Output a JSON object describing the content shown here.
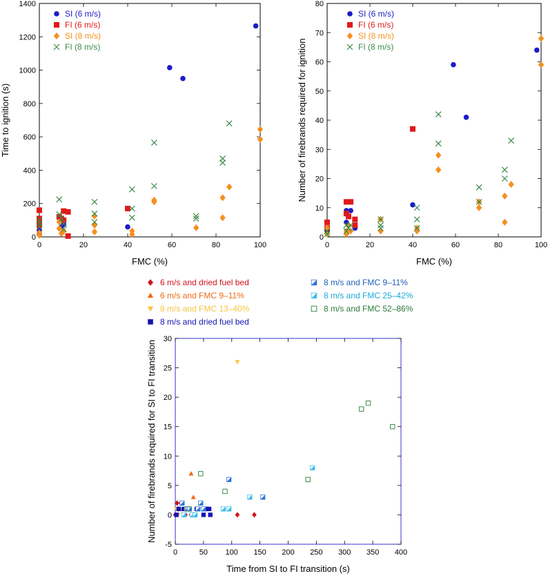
{
  "chart_data": [
    {
      "id": "chartA",
      "type": "scatter",
      "title": "",
      "xlabel": "FMC (%)",
      "ylabel": "Time to ignition (s)",
      "xlim": [
        0,
        100
      ],
      "ylim": [
        0,
        1400
      ],
      "xticks": [
        0,
        20,
        40,
        60,
        80,
        100
      ],
      "yticks": [
        0,
        200,
        400,
        600,
        800,
        1000,
        1200,
        1400
      ],
      "legend_position": "top-left",
      "series": [
        {
          "name": "SI (6 m/s)",
          "marker": "circle",
          "color": "#1c1cc8",
          "label_color": "#1c1cc8",
          "points": [
            [
              0,
              20
            ],
            [
              0,
              40
            ],
            [
              10,
              60
            ],
            [
              11,
              75
            ],
            [
              13,
              150
            ],
            [
              40,
              60
            ],
            [
              59,
              1015
            ],
            [
              65,
              950
            ],
            [
              98,
              1265
            ]
          ]
        },
        {
          "name": "FI (6 m/s)",
          "marker": "square",
          "color": "#e01a1a",
          "label_color": "#e01a1a",
          "points": [
            [
              0,
              160
            ],
            [
              0,
              110
            ],
            [
              0,
              90
            ],
            [
              0,
              70
            ],
            [
              9,
              120
            ],
            [
              10,
              110
            ],
            [
              11,
              100
            ],
            [
              11,
              155
            ],
            [
              13,
              150
            ],
            [
              13,
              5
            ],
            [
              40,
              170
            ]
          ]
        },
        {
          "name": "SI (8 m/s)",
          "marker": "diamond",
          "color": "#f58f1e",
          "label_color": "#f58f1e",
          "points": [
            [
              0,
              10
            ],
            [
              0,
              25
            ],
            [
              9,
              50
            ],
            [
              9,
              90
            ],
            [
              10,
              20
            ],
            [
              11,
              35
            ],
            [
              25,
              125
            ],
            [
              25,
              70
            ],
            [
              25,
              30
            ],
            [
              42,
              35
            ],
            [
              42,
              15
            ],
            [
              52,
              210
            ],
            [
              52,
              220
            ],
            [
              71,
              55
            ],
            [
              83,
              235
            ],
            [
              83,
              115
            ],
            [
              86,
              300
            ],
            [
              100,
              645
            ],
            [
              100,
              585
            ]
          ]
        },
        {
          "name": "FI (8 m/s)",
          "marker": "cross",
          "color": "#3a8a4a",
          "label_color": "#3a8a4a",
          "points": [
            [
              0,
              80
            ],
            [
              0,
              100
            ],
            [
              0,
              60
            ],
            [
              9,
              225
            ],
            [
              9,
              135
            ],
            [
              10,
              110
            ],
            [
              11,
              80
            ],
            [
              11,
              45
            ],
            [
              25,
              210
            ],
            [
              25,
              140
            ],
            [
              25,
              90
            ],
            [
              42,
              285
            ],
            [
              42,
              170
            ],
            [
              42,
              115
            ],
            [
              52,
              565
            ],
            [
              52,
              305
            ],
            [
              71,
              125
            ],
            [
              71,
              110
            ],
            [
              83,
              470
            ],
            [
              83,
              445
            ],
            [
              86,
              680
            ]
          ]
        }
      ]
    },
    {
      "id": "chartB",
      "type": "scatter",
      "title": "",
      "xlabel": "FMC (%)",
      "ylabel": "Number of firebrands required for ignition",
      "xlim": [
        0,
        100
      ],
      "ylim": [
        0,
        80
      ],
      "xticks": [
        0,
        20,
        40,
        60,
        80,
        100
      ],
      "yticks": [
        0,
        10,
        20,
        30,
        40,
        50,
        60,
        70,
        80
      ],
      "legend_position": "top-left",
      "series": [
        {
          "name": "SI (6 m/s)",
          "marker": "circle",
          "color": "#1c1cc8",
          "label_color": "#1c1cc8",
          "points": [
            [
              0,
              2
            ],
            [
              9,
              9
            ],
            [
              9,
              5
            ],
            [
              10,
              7
            ],
            [
              11,
              9
            ],
            [
              13,
              3
            ],
            [
              40,
              11
            ],
            [
              59,
              59
            ],
            [
              65,
              41
            ],
            [
              98,
              64
            ]
          ]
        },
        {
          "name": "FI (6 m/s)",
          "marker": "square",
          "color": "#e01a1a",
          "label_color": "#e01a1a",
          "points": [
            [
              0,
              5
            ],
            [
              0,
              3
            ],
            [
              9,
              12
            ],
            [
              9,
              8
            ],
            [
              10,
              7
            ],
            [
              11,
              12
            ],
            [
              13,
              6
            ],
            [
              13,
              4
            ],
            [
              40,
              37
            ]
          ]
        },
        {
          "name": "SI (8 m/s)",
          "marker": "diamond",
          "color": "#f58f1e",
          "label_color": "#f58f1e",
          "points": [
            [
              0,
              1
            ],
            [
              0,
              3
            ],
            [
              9,
              2
            ],
            [
              9,
              1
            ],
            [
              10,
              4
            ],
            [
              11,
              2
            ],
            [
              25,
              6
            ],
            [
              25,
              2
            ],
            [
              42,
              3
            ],
            [
              42,
              2
            ],
            [
              52,
              28
            ],
            [
              52,
              23
            ],
            [
              71,
              10
            ],
            [
              71,
              12
            ],
            [
              83,
              14
            ],
            [
              83,
              5
            ],
            [
              86,
              18
            ],
            [
              100,
              68
            ],
            [
              100,
              59
            ]
          ]
        },
        {
          "name": "FI (8 m/s)",
          "marker": "cross",
          "color": "#3a8a4a",
          "label_color": "#3a8a4a",
          "points": [
            [
              0,
              1
            ],
            [
              0,
              2
            ],
            [
              9,
              4
            ],
            [
              9,
              2
            ],
            [
              10,
              3
            ],
            [
              11,
              4
            ],
            [
              25,
              6
            ],
            [
              25,
              4
            ],
            [
              25,
              3
            ],
            [
              42,
              10
            ],
            [
              42,
              6
            ],
            [
              42,
              3
            ],
            [
              52,
              42
            ],
            [
              52,
              32
            ],
            [
              71,
              17
            ],
            [
              71,
              12
            ],
            [
              83,
              23
            ],
            [
              83,
              20
            ],
            [
              86,
              33
            ]
          ]
        }
      ]
    },
    {
      "id": "chartC",
      "type": "scatter",
      "title": "",
      "xlabel": "Time from SI to FI transition (s)",
      "ylabel": "Number of firebrands required for SI to FI transition",
      "xlim": [
        0,
        400
      ],
      "ylim": [
        -5,
        30
      ],
      "xticks": [
        0,
        50,
        100,
        150,
        200,
        250,
        300,
        350,
        400
      ],
      "yticks": [
        -5,
        0,
        5,
        10,
        15,
        20,
        25,
        30
      ],
      "legend_position": "top (above plot, two columns)",
      "series": [
        {
          "name": "6 m/s and dried fuel bed",
          "marker": "diamond",
          "color": "#d0121c",
          "label_color": "#d0121c",
          "points": [
            [
              0,
              0
            ],
            [
              3,
              2
            ],
            [
              5,
              1
            ],
            [
              10,
              2
            ],
            [
              18,
              0
            ],
            [
              28,
              0
            ],
            [
              32,
              0
            ],
            [
              110,
              0
            ],
            [
              140,
              0
            ]
          ]
        },
        {
          "name": "6 m/s and FMC 9–11%",
          "marker": "triangle-up",
          "color": "#ef6a1a",
          "label_color": "#ef6a1a",
          "points": [
            [
              28,
              7
            ],
            [
              32,
              3
            ],
            [
              8,
              1
            ],
            [
              14,
              1
            ]
          ]
        },
        {
          "name": "8 m/s and FMC 13–40%",
          "marker": "triangle-down",
          "color": "#f5c542",
          "label_color": "#f5c542",
          "points": [
            [
              110,
              26
            ],
            [
              2,
              1
            ],
            [
              5,
              0
            ]
          ]
        },
        {
          "name": "8 m/s and dried fuel bed",
          "marker": "square",
          "color": "#1414b4",
          "label_color": "#1414b4",
          "points": [
            [
              2,
              0
            ],
            [
              6,
              1
            ],
            [
              15,
              1
            ],
            [
              20,
              1
            ],
            [
              34,
              0
            ],
            [
              38,
              1
            ],
            [
              50,
              0
            ],
            [
              55,
              1
            ],
            [
              60,
              1
            ],
            [
              62,
              0
            ]
          ]
        },
        {
          "name": "8 m/s and FMC 9–11%",
          "marker": "square-half",
          "color": "#2e73d6",
          "label_color": "#1f5fb8",
          "points": [
            [
              12,
              2
            ],
            [
              20,
              1
            ],
            [
              25,
              1
            ],
            [
              40,
              1
            ],
            [
              45,
              2
            ],
            [
              50,
              1
            ],
            [
              95,
              6
            ],
            [
              155,
              3
            ]
          ]
        },
        {
          "name": "8 m/s and FMC 25–42%",
          "marker": "square-half",
          "color": "#3dbde8",
          "label_color": "#1aa9d8",
          "points": [
            [
              15,
              0
            ],
            [
              30,
              0
            ],
            [
              35,
              0
            ],
            [
              85,
              1
            ],
            [
              95,
              1
            ],
            [
              132,
              3
            ],
            [
              243,
              8
            ]
          ]
        },
        {
          "name": "8 m/s and FMC 52–86%",
          "marker": "square-open",
          "color": "#3a8a4a",
          "label_color": "#2a7a3a",
          "points": [
            [
              22,
              1
            ],
            [
              45,
              7
            ],
            [
              88,
              4
            ],
            [
              235,
              6
            ],
            [
              330,
              18
            ],
            [
              342,
              19
            ],
            [
              385,
              15
            ]
          ]
        }
      ]
    }
  ]
}
